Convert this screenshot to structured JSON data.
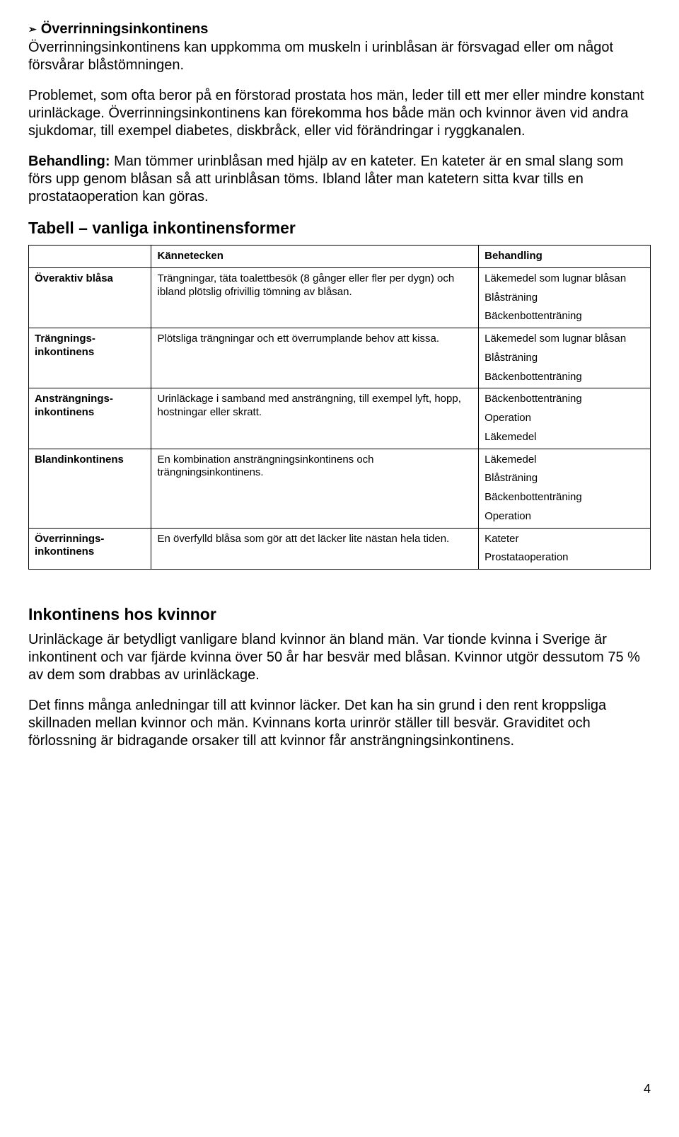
{
  "heading1": {
    "title": "Överrinningsinkontinens",
    "para1": "Överrinningsinkontinens kan uppkomma om muskeln i urinblåsan är försvagad eller om något försvårar blåstömningen.",
    "para2": "Problemet, som ofta beror på en förstorad prostata hos män, leder till ett mer eller mindre konstant urinläckage. Överrinningsinkontinens kan förekomma hos både män och kvinnor även vid andra sjukdomar, till exempel diabetes, diskbråck, eller vid förändringar i ryggkanalen.",
    "behandling_label": "Behandling:",
    "behandling_text": " Man tömmer urinblåsan med hjälp av en kateter. En kateter är en smal slang som förs upp genom blåsan så att urinblåsan töms. Ibland låter man katetern sitta kvar tills en prostataoperation kan göras."
  },
  "table_section_title": "Tabell – vanliga inkontinensformer",
  "table": {
    "headers": {
      "col1": "",
      "col2": "Kännetecken",
      "col3": "Behandling"
    },
    "rows": [
      {
        "label": "Överaktiv blåsa",
        "kenn": "Trängningar, täta toalettbesök (8 gånger eller fler per dygn) och ibland plötslig ofrivillig tömning av blåsan.",
        "beh": [
          "Läkemedel som lugnar blåsan",
          "Blåsträning",
          "Bäckenbottenträning"
        ]
      },
      {
        "label": "Trängnings-\ninkontinens",
        "kenn": "Plötsliga trängningar och ett överrumplande behov att kissa.",
        "beh": [
          "Läkemedel som lugnar blåsan",
          "Blåsträning",
          "Bäckenbottenträning"
        ]
      },
      {
        "label": "Ansträngnings-\ninkontinens",
        "kenn": "Urinläckage i samband med ansträngning, till exempel lyft, hopp, hostningar eller skratt.",
        "beh": [
          "Bäckenbottenträning",
          "Operation",
          "Läkemedel"
        ]
      },
      {
        "label": "Blandinkontinens",
        "kenn": "En kombination ansträngningsinkontinens och trängningsinkontinens.",
        "beh": [
          "Läkemedel",
          "Blåsträning",
          "Bäckenbottenträning",
          "Operation"
        ]
      },
      {
        "label": "Överrinnings-\ninkontinens",
        "kenn": "En överfylld blåsa som gör att det läcker lite nästan hela tiden.",
        "beh": [
          "Kateter",
          "Prostataoperation"
        ]
      }
    ]
  },
  "section2": {
    "title": "Inkontinens hos kvinnor",
    "para1": "Urinläckage är betydligt vanligare bland kvinnor än bland män. Var tionde kvinna i Sverige är inkontinent och var fjärde kvinna över 50 år har besvär med blåsan. Kvinnor utgör dessutom 75 % av dem som drabbas av urinläckage.",
    "para2": "Det finns många anledningar till att kvinnor läcker. Det kan ha sin grund i den rent kroppsliga skillnaden mellan kvinnor och män. Kvinnans korta urinrör ställer till besvär. Graviditet och förlossning är bidragande orsaker till att kvinnor får ansträngningsinkontinens."
  },
  "page_number": "4"
}
